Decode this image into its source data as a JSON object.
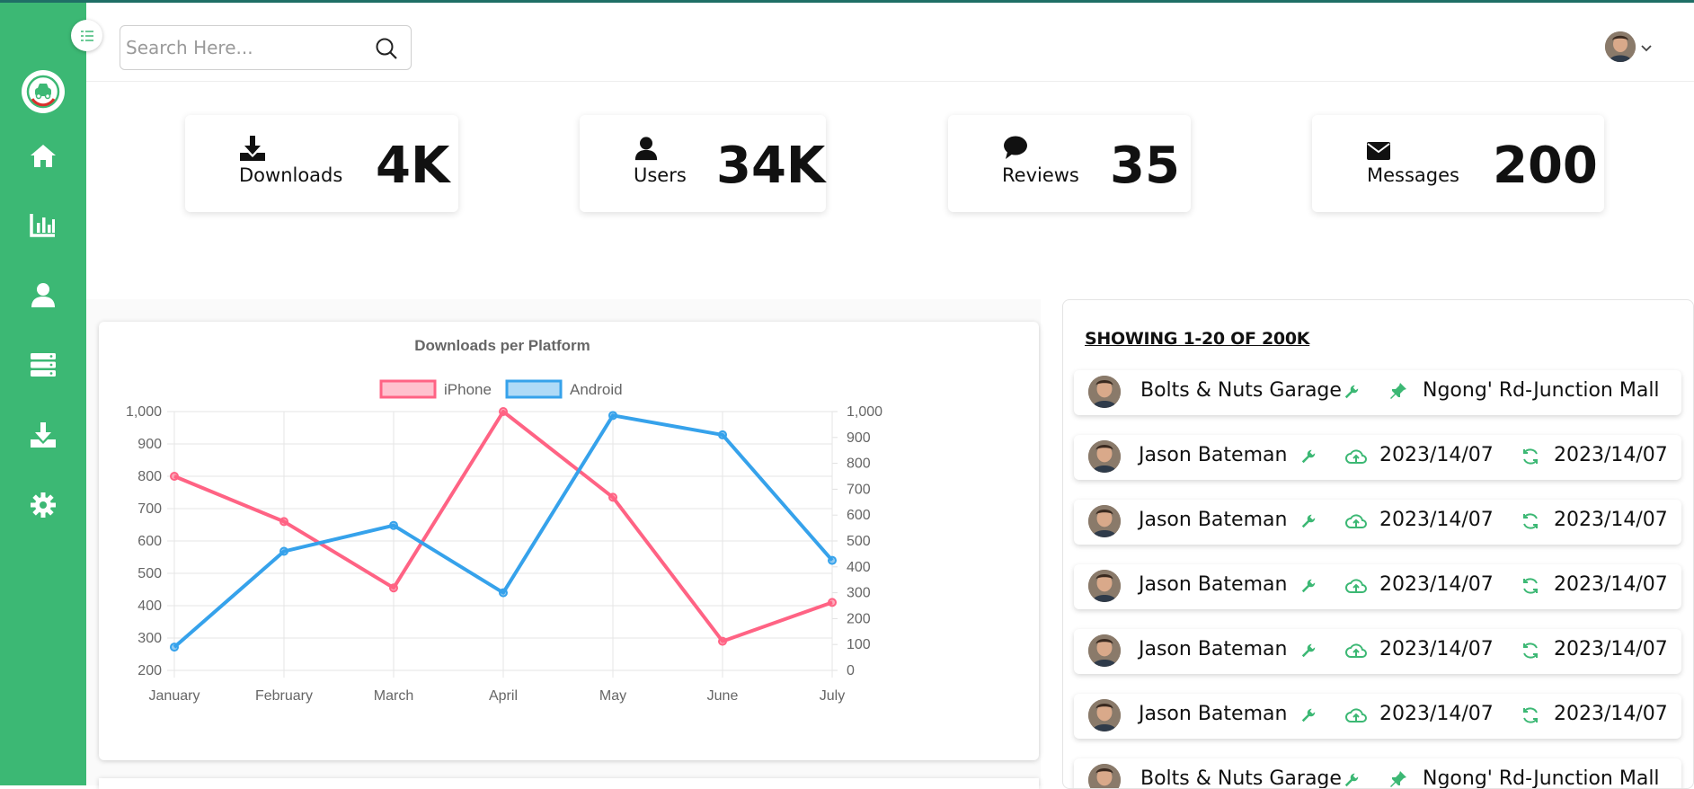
{
  "search": {
    "placeholder": "Search Here..."
  },
  "colors": {
    "sidebar": "#3cb874",
    "accent": "#3cb874",
    "iphone": "#ff6384",
    "android": "#36a2eb"
  },
  "sidebar": {
    "logo": "car-logo-icon",
    "items": [
      {
        "icon": "home-icon"
      },
      {
        "icon": "bar-chart-icon"
      },
      {
        "icon": "user-icon"
      },
      {
        "icon": "server-icon"
      },
      {
        "icon": "download-icon"
      },
      {
        "icon": "gear-icon"
      }
    ]
  },
  "stats": [
    {
      "label": "Downloads",
      "value": "4K",
      "icon": "download-icon"
    },
    {
      "label": "Users",
      "value": "34K",
      "icon": "user-icon"
    },
    {
      "label": "Reviews",
      "value": "35",
      "icon": "comment-icon"
    },
    {
      "label": "Messages",
      "value": "200",
      "icon": "envelope-icon"
    }
  ],
  "chart_data": {
    "type": "line",
    "title": "Downloads per Platform",
    "categories": [
      "January",
      "February",
      "March",
      "April",
      "May",
      "June",
      "July"
    ],
    "series": [
      {
        "name": "iPhone",
        "axis": "left",
        "color": "#ff6384",
        "values": [
          800,
          660,
          455,
          1000,
          735,
          290,
          410
        ]
      },
      {
        "name": "Android",
        "axis": "right",
        "color": "#36a2eb",
        "values": [
          90,
          460,
          560,
          300,
          985,
          910,
          425
        ]
      }
    ],
    "y_left": {
      "min": 200,
      "max": 1000,
      "ticks": [
        "1,000",
        "900",
        "800",
        "700",
        "600",
        "500",
        "400",
        "300",
        "200"
      ]
    },
    "y_right": {
      "min": 0,
      "max": 1000,
      "ticks": [
        "1,000",
        "900",
        "800",
        "700",
        "600",
        "500",
        "400",
        "300",
        "200",
        "100",
        "0"
      ]
    },
    "legend": "top",
    "grid": true
  },
  "list": {
    "heading": "SHOWING 1-20 OF 200K",
    "rows": [
      {
        "kind": "garage",
        "name": "Bolts & Nuts Garage",
        "location": "Ngong' Rd-Junction Mall"
      },
      {
        "kind": "user",
        "name": "Jason Bateman",
        "uploaded": "2023/14/07",
        "updated": "2023/14/07"
      },
      {
        "kind": "user",
        "name": "Jason Bateman",
        "uploaded": "2023/14/07",
        "updated": "2023/14/07"
      },
      {
        "kind": "user",
        "name": "Jason Bateman",
        "uploaded": "2023/14/07",
        "updated": "2023/14/07"
      },
      {
        "kind": "user",
        "name": "Jason Bateman",
        "uploaded": "2023/14/07",
        "updated": "2023/14/07"
      },
      {
        "kind": "user",
        "name": "Jason Bateman",
        "uploaded": "2023/14/07",
        "updated": "2023/14/07"
      },
      {
        "kind": "garage",
        "name": "Bolts & Nuts Garage",
        "location": "Ngong' Rd-Junction Mall"
      }
    ]
  }
}
